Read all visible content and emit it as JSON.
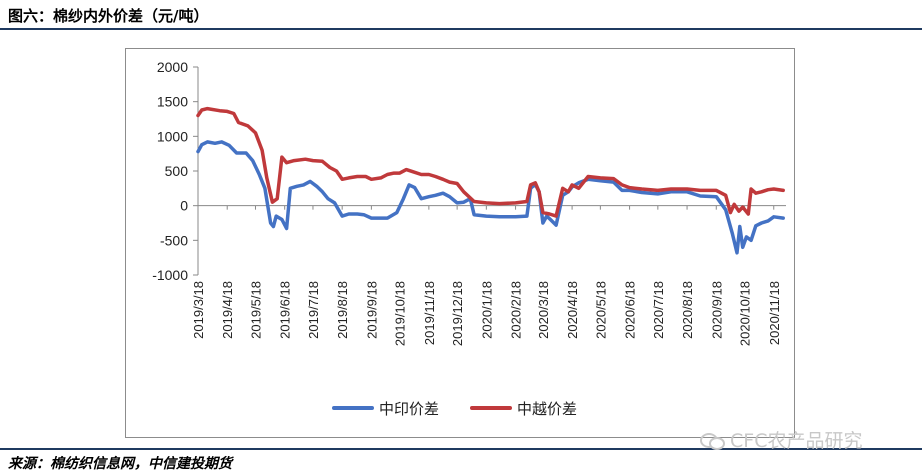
{
  "figure_title": "图六：棉纱内外价差（元/吨）",
  "source": "来源：棉纺织信息网，中信建投期货",
  "watermark": "CFC农产品研究",
  "chart_data": {
    "type": "line",
    "title": "",
    "xlabel": "",
    "ylabel": "",
    "ylim": [
      -1000,
      2000
    ],
    "yticks": [
      -1000,
      -500,
      0,
      500,
      1000,
      1500,
      2000
    ],
    "grid": false,
    "legend_position": "bottom",
    "categories": [
      "2019/3/18",
      "2019/4/18",
      "2019/5/18",
      "2019/6/18",
      "2019/7/18",
      "2019/8/18",
      "2019/9/18",
      "2019/10/18",
      "2019/11/18",
      "2019/12/18",
      "2020/1/18",
      "2020/2/18",
      "2020/3/18",
      "2020/4/18",
      "2020/5/18",
      "2020/6/18",
      "2020/7/18",
      "2020/8/18",
      "2020/9/18",
      "2020/10/18",
      "2020/11/18"
    ],
    "series": [
      {
        "name": "中印价差",
        "color": "#4472c4",
        "points": [
          [
            "2019/3/18",
            780
          ],
          [
            "2019/3/22",
            880
          ],
          [
            "2019/3/28",
            920
          ],
          [
            "2019/4/5",
            900
          ],
          [
            "2019/4/12",
            920
          ],
          [
            "2019/4/20",
            870
          ],
          [
            "2019/4/28",
            760
          ],
          [
            "2019/5/8",
            760
          ],
          [
            "2019/5/15",
            650
          ],
          [
            "2019/5/22",
            450
          ],
          [
            "2019/5/28",
            250
          ],
          [
            "2019/6/3",
            -250
          ],
          [
            "2019/6/6",
            -300
          ],
          [
            "2019/6/9",
            -150
          ],
          [
            "2019/6/15",
            -200
          ],
          [
            "2019/6/20",
            -330
          ],
          [
            "2019/6/24",
            250
          ],
          [
            "2019/7/1",
            280
          ],
          [
            "2019/7/8",
            300
          ],
          [
            "2019/7/15",
            350
          ],
          [
            "2019/7/22",
            280
          ],
          [
            "2019/7/28",
            200
          ],
          [
            "2019/8/3",
            100
          ],
          [
            "2019/8/10",
            40
          ],
          [
            "2019/8/18",
            -150
          ],
          [
            "2019/8/25",
            -120
          ],
          [
            "2019/9/3",
            -120
          ],
          [
            "2019/9/10",
            -130
          ],
          [
            "2019/9/18",
            -180
          ],
          [
            "2019/9/28",
            -180
          ],
          [
            "2019/10/5",
            -180
          ],
          [
            "2019/10/15",
            -100
          ],
          [
            "2019/10/22",
            100
          ],
          [
            "2019/10/28",
            300
          ],
          [
            "2019/11/3",
            260
          ],
          [
            "2019/11/10",
            100
          ],
          [
            "2019/11/18",
            130
          ],
          [
            "2019/11/25",
            150
          ],
          [
            "2019/12/3",
            180
          ],
          [
            "2019/12/10",
            130
          ],
          [
            "2019/12/18",
            40
          ],
          [
            "2019/12/25",
            50
          ],
          [
            "2020/1/1",
            100
          ],
          [
            "2020/1/5",
            -130
          ],
          [
            "2020/1/18",
            -150
          ],
          [
            "2020/2/1",
            -160
          ],
          [
            "2020/2/18",
            -160
          ],
          [
            "2020/3/1",
            -150
          ],
          [
            "2020/3/5",
            250
          ],
          [
            "2020/3/10",
            310
          ],
          [
            "2020/3/14",
            200
          ],
          [
            "2020/3/18",
            -250
          ],
          [
            "2020/3/22",
            -150
          ],
          [
            "2020/3/26",
            -200
          ],
          [
            "2020/4/1",
            -280
          ],
          [
            "2020/4/8",
            150
          ],
          [
            "2020/4/14",
            200
          ],
          [
            "2020/4/18",
            270
          ],
          [
            "2020/4/25",
            330
          ],
          [
            "2020/5/5",
            380
          ],
          [
            "2020/5/18",
            360
          ],
          [
            "2020/6/1",
            340
          ],
          [
            "2020/6/10",
            220
          ],
          [
            "2020/6/18",
            220
          ],
          [
            "2020/7/1",
            190
          ],
          [
            "2020/7/18",
            170
          ],
          [
            "2020/8/1",
            200
          ],
          [
            "2020/8/18",
            200
          ],
          [
            "2020/9/1",
            140
          ],
          [
            "2020/9/18",
            130
          ],
          [
            "2020/9/28",
            -60
          ],
          [
            "2020/10/5",
            -400
          ],
          [
            "2020/10/10",
            -680
          ],
          [
            "2020/10/13",
            -300
          ],
          [
            "2020/10/16",
            -600
          ],
          [
            "2020/10/20",
            -450
          ],
          [
            "2020/10/25",
            -500
          ],
          [
            "2020/10/30",
            -290
          ],
          [
            "2020/11/5",
            -250
          ],
          [
            "2020/11/12",
            -220
          ],
          [
            "2020/11/18",
            -160
          ],
          [
            "2020/11/28",
            -180
          ]
        ]
      },
      {
        "name": "中越价差",
        "color": "#c0393b",
        "points": [
          [
            "2019/3/18",
            1300
          ],
          [
            "2019/3/22",
            1380
          ],
          [
            "2019/3/28",
            1400
          ],
          [
            "2019/4/10",
            1370
          ],
          [
            "2019/4/18",
            1360
          ],
          [
            "2019/4/25",
            1330
          ],
          [
            "2019/4/30",
            1200
          ],
          [
            "2019/5/10",
            1150
          ],
          [
            "2019/5/18",
            1050
          ],
          [
            "2019/5/25",
            800
          ],
          [
            "2019/5/30",
            400
          ],
          [
            "2019/6/5",
            50
          ],
          [
            "2019/6/10",
            100
          ],
          [
            "2019/6/15",
            700
          ],
          [
            "2019/6/20",
            620
          ],
          [
            "2019/6/28",
            650
          ],
          [
            "2019/7/10",
            670
          ],
          [
            "2019/7/18",
            650
          ],
          [
            "2019/7/28",
            640
          ],
          [
            "2019/8/5",
            550
          ],
          [
            "2019/8/12",
            500
          ],
          [
            "2019/8/18",
            380
          ],
          [
            "2019/8/25",
            400
          ],
          [
            "2019/9/3",
            420
          ],
          [
            "2019/9/12",
            420
          ],
          [
            "2019/9/18",
            380
          ],
          [
            "2019/9/28",
            400
          ],
          [
            "2019/10/5",
            450
          ],
          [
            "2019/10/12",
            470
          ],
          [
            "2019/10/18",
            470
          ],
          [
            "2019/10/25",
            520
          ],
          [
            "2019/11/1",
            490
          ],
          [
            "2019/11/10",
            450
          ],
          [
            "2019/11/18",
            450
          ],
          [
            "2019/11/25",
            420
          ],
          [
            "2019/12/3",
            380
          ],
          [
            "2019/12/10",
            340
          ],
          [
            "2019/12/18",
            320
          ],
          [
            "2019/12/25",
            200
          ],
          [
            "2020/1/5",
            60
          ],
          [
            "2020/1/18",
            40
          ],
          [
            "2020/2/1",
            30
          ],
          [
            "2020/2/18",
            40
          ],
          [
            "2020/3/1",
            60
          ],
          [
            "2020/3/5",
            300
          ],
          [
            "2020/3/10",
            330
          ],
          [
            "2020/3/14",
            200
          ],
          [
            "2020/3/18",
            -100
          ],
          [
            "2020/3/25",
            -120
          ],
          [
            "2020/4/1",
            -150
          ],
          [
            "2020/4/8",
            250
          ],
          [
            "2020/4/14",
            200
          ],
          [
            "2020/4/18",
            300
          ],
          [
            "2020/4/25",
            250
          ],
          [
            "2020/5/5",
            420
          ],
          [
            "2020/5/18",
            400
          ],
          [
            "2020/6/1",
            390
          ],
          [
            "2020/6/10",
            300
          ],
          [
            "2020/6/18",
            260
          ],
          [
            "2020/7/1",
            240
          ],
          [
            "2020/7/18",
            220
          ],
          [
            "2020/8/1",
            240
          ],
          [
            "2020/8/18",
            240
          ],
          [
            "2020/9/1",
            220
          ],
          [
            "2020/9/18",
            220
          ],
          [
            "2020/9/28",
            150
          ],
          [
            "2020/10/3",
            -100
          ],
          [
            "2020/10/7",
            20
          ],
          [
            "2020/10/12",
            -80
          ],
          [
            "2020/10/16",
            -20
          ],
          [
            "2020/10/22",
            -120
          ],
          [
            "2020/10/25",
            240
          ],
          [
            "2020/10/30",
            180
          ],
          [
            "2020/11/5",
            200
          ],
          [
            "2020/11/12",
            230
          ],
          [
            "2020/11/18",
            240
          ],
          [
            "2020/11/28",
            220
          ]
        ]
      }
    ]
  }
}
